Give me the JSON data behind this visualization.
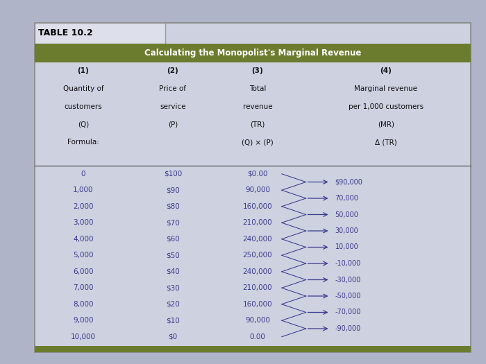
{
  "title_label": "TABLE 10.2",
  "subtitle": "Calculating the Monopolist's Marginal Revenue",
  "subtitle_bg": "#6b7c2e",
  "subtitle_text_color": "#ffffff",
  "table_bg": "#cdd1e0",
  "quantities": [
    "0",
    "1,000",
    "2,000",
    "3,000",
    "4,000",
    "5,000",
    "6,000",
    "7,000",
    "8,000",
    "9,000",
    "10,000"
  ],
  "prices": [
    "$100",
    "$90",
    "$80",
    "$70",
    "$60",
    "$50",
    "$40",
    "$30",
    "$20",
    "$10",
    "$0"
  ],
  "total_revenues": [
    "$0.00",
    "90,000",
    "160,000",
    "210,000",
    "240,000",
    "250,000",
    "240,000",
    "210,000",
    "160,000",
    "90,000",
    "0.00"
  ],
  "marginal_revenues": [
    "$90,000",
    "70,000",
    "50,000",
    "30,000",
    "10,000",
    "-10,000",
    "-30,000",
    "-50,000",
    "-70,000",
    "-90,000"
  ],
  "text_color": "#3a3a8c",
  "header_text_color": "#111111",
  "arrow_color": "#3a3a8c",
  "line_color": "#666666",
  "fig_bg": "#b0b4c8"
}
